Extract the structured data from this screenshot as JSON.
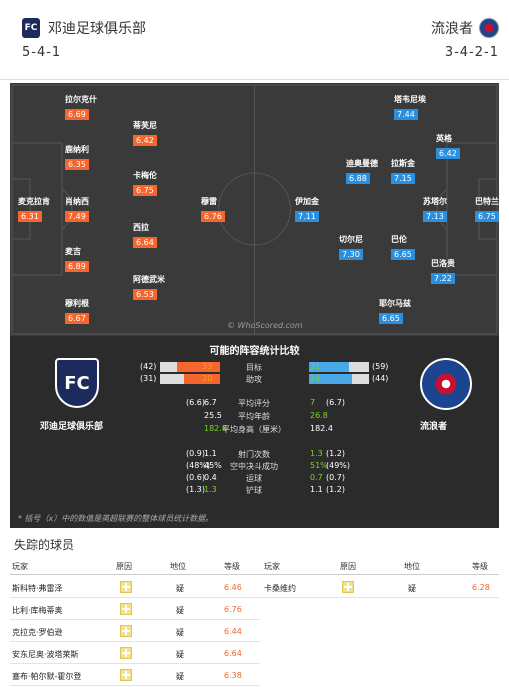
{
  "header": {
    "home_name": "邓迪足球俱乐部",
    "away_name": "流浪者",
    "home_form": "5-4-1",
    "away_form": "3-4-2-1",
    "home_crest_text": "FC"
  },
  "pitch": {
    "watermark": "© WhoScored.com",
    "home_players": [
      {
        "name": "麦克拉肯",
        "rating": "6.31"
      },
      {
        "name": "拉尔克什",
        "rating": "6.69"
      },
      {
        "name": "鹿纳利",
        "rating": "6.35"
      },
      {
        "name": "肖纳西",
        "rating": "7.49"
      },
      {
        "name": "麦吉",
        "rating": "6.89"
      },
      {
        "name": "穆利根",
        "rating": "6.67"
      },
      {
        "name": "蒂芙尼",
        "rating": "6.42"
      },
      {
        "name": "卡梅伦",
        "rating": "6.75"
      },
      {
        "name": "西拉",
        "rating": "6.64"
      },
      {
        "name": "阿德武米",
        "rating": "6.53"
      },
      {
        "name": "穆雷",
        "rating": "6.76"
      }
    ],
    "away_players": [
      {
        "name": "巴特兰",
        "rating": "6.75"
      },
      {
        "name": "英格",
        "rating": "6.42"
      },
      {
        "name": "苏塔尔",
        "rating": "7.13"
      },
      {
        "name": "巴洛贵",
        "rating": "7.22"
      },
      {
        "name": "塔韦尼埃",
        "rating": "7.44"
      },
      {
        "name": "拉斯金",
        "rating": "7.15"
      },
      {
        "name": "迪奥曼德",
        "rating": "6.88"
      },
      {
        "name": "巴伦",
        "rating": "6.65"
      },
      {
        "name": "切尔尼",
        "rating": "7.30"
      },
      {
        "name": "耶尔马兹",
        "rating": "6.65"
      },
      {
        "name": "伊加金",
        "rating": "7.11"
      }
    ]
  },
  "compare": {
    "title": "可能的阵容统计比较",
    "home_club": "邓迪足球俱乐部",
    "away_club": "流浪者",
    "bars": [
      {
        "label": "目标",
        "home_pre": "(42)",
        "home": "33",
        "away": "31",
        "away_post": "(59)",
        "home_frac": 0.36,
        "away_frac": 0.33
      },
      {
        "label": "助攻",
        "home_pre": "(31)",
        "home": "20",
        "away": "24",
        "away_post": "(44)",
        "home_frac": 0.3,
        "away_frac": 0.36
      }
    ],
    "stats": [
      {
        "label": "平均评分",
        "home_pre": "(6.6)",
        "home": "6.7",
        "away": "7",
        "away_post": "(6.7)",
        "home_color": "w",
        "away_color": "g"
      },
      {
        "label": "平均年龄",
        "home_pre": "",
        "home": "25.5",
        "away": "26.8",
        "away_post": "",
        "home_color": "w",
        "away_color": "g"
      },
      {
        "label": "平均身高（厘米）",
        "home_pre": "",
        "home": "182.6",
        "away": "182.4",
        "away_post": "",
        "home_color": "g",
        "away_color": "w"
      }
    ],
    "stats2": [
      {
        "label": "射门次数",
        "home_pre": "(0.9)",
        "home": "1.1",
        "away": "1.3",
        "away_post": "(1.2)",
        "home_color": "w",
        "away_color": "g"
      },
      {
        "label": "空中决斗成功",
        "home_pre": "(48%)",
        "home": "45%",
        "away": "51%",
        "away_post": "(49%)",
        "home_color": "w",
        "away_color": "g"
      },
      {
        "label": "运球",
        "home_pre": "(0.6)",
        "home": "0.4",
        "away": "0.7",
        "away_post": "(0.7)",
        "home_color": "w",
        "away_color": "g"
      },
      {
        "label": "铲球",
        "home_pre": "(1.3)",
        "home": "1.3",
        "away": "1.1",
        "away_post": "(1.2)",
        "home_color": "g",
        "away_color": "w"
      }
    ],
    "note": "* 括号（x）中的数值是英超联赛的整体球员统计数据。"
  },
  "missing": {
    "title": "失踪的球员",
    "headers": {
      "player": "玩家",
      "reason": "原因",
      "status": "地位",
      "rating": "等级"
    },
    "home": [
      {
        "name": "斯科特·弗雷泽",
        "status": "疑",
        "rating": "6.46"
      },
      {
        "name": "比利·库梅蒂奥",
        "status": "疑",
        "rating": "6.76"
      },
      {
        "name": "克拉克·罗伯逊",
        "status": "疑",
        "rating": "6.44"
      },
      {
        "name": "安东尼奥·波塔莱斯",
        "status": "疑",
        "rating": "6.64"
      },
      {
        "name": "塞布·帕尔默-霍尔登",
        "status": "疑",
        "rating": "6.38"
      }
    ],
    "away": [
      {
        "name": "卡桑维约",
        "status": "疑",
        "rating": "6.28"
      }
    ]
  }
}
